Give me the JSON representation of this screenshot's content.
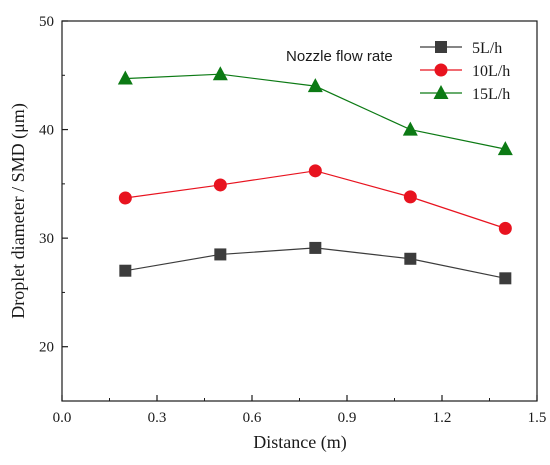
{
  "chart_data": {
    "type": "line",
    "xlabel": "Distance (m)",
    "ylabel": "Droplet diameter / SMD (μm)",
    "xlim": [
      0.0,
      1.5
    ],
    "ylim": [
      15,
      50
    ],
    "x_ticks": [
      "0.0",
      "0.3",
      "0.6",
      "0.9",
      "1.2",
      "1.5"
    ],
    "y_ticks": [
      "20",
      "30",
      "40",
      "50"
    ],
    "grid": false,
    "legend_title": "Nozzle flow rate",
    "legend_position": "top-right",
    "x": [
      0.2,
      0.5,
      0.8,
      1.1,
      1.4
    ],
    "series": [
      {
        "name": "5L/h",
        "values": [
          27.0,
          28.5,
          29.1,
          28.1,
          26.3
        ],
        "color": "#3c3c3c",
        "marker": "square"
      },
      {
        "name": "10L/h",
        "values": [
          33.7,
          34.9,
          36.2,
          33.8,
          30.9
        ],
        "color": "#e8131f",
        "marker": "circle"
      },
      {
        "name": "15L/h",
        "values": [
          44.7,
          45.1,
          44.0,
          40.0,
          38.2
        ],
        "color": "#0c7a14",
        "marker": "triangle"
      }
    ]
  }
}
